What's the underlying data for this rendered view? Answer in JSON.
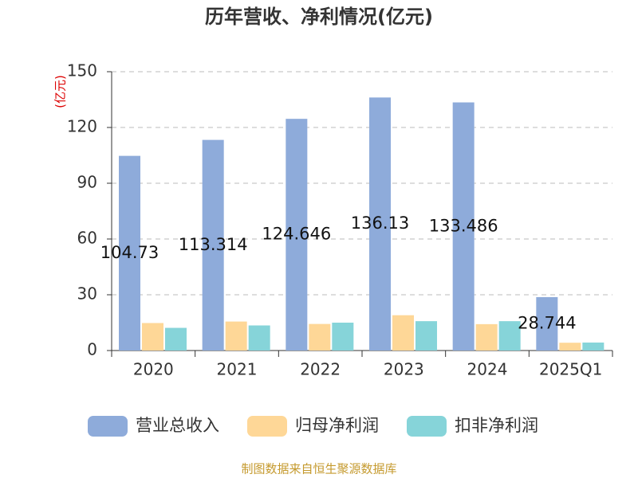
{
  "chart_data": {
    "type": "bar",
    "title": "历年营收、净利情况(亿元)",
    "y_label": "(亿元)",
    "categories": [
      "2020",
      "2021",
      "2022",
      "2023",
      "2024",
      "2025Q1"
    ],
    "series": [
      {
        "name": "营业总收入",
        "color": "#8eabda",
        "values": [
          104.73,
          113.314,
          124.646,
          136.13,
          133.486,
          28.744
        ],
        "data_labels": true
      },
      {
        "name": "归母净利润",
        "color": "#fed797",
        "values": [
          14.8,
          15.6,
          14.3,
          19.0,
          14.2,
          4.2
        ],
        "data_labels": false
      },
      {
        "name": "扣非净利润",
        "color": "#86d4d9",
        "values": [
          12.2,
          13.5,
          15.0,
          15.8,
          15.8,
          4.3
        ],
        "data_labels": false
      }
    ],
    "ylim": [
      0,
      150
    ],
    "yticks": [
      0,
      30,
      60,
      90,
      120,
      150
    ],
    "grid": true,
    "legend": "bottom",
    "source": "制图数据来自恒生聚源数据库"
  }
}
